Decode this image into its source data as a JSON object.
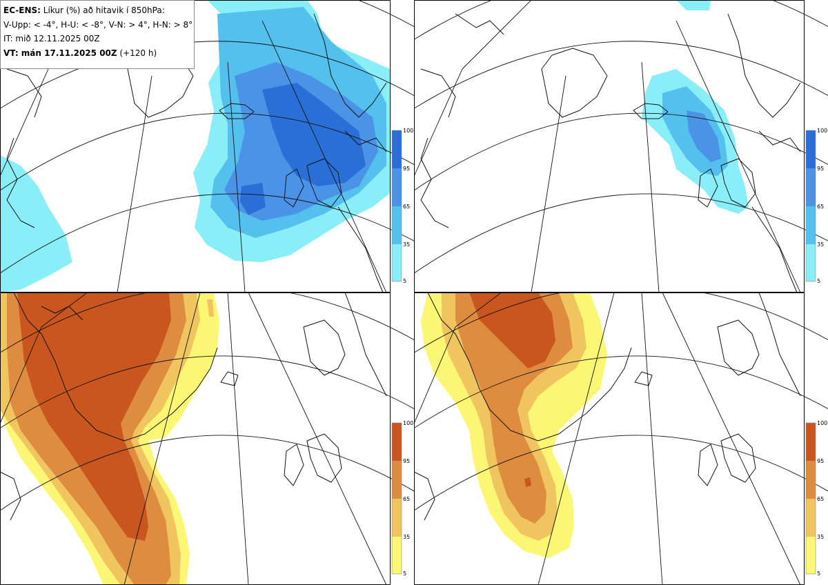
{
  "info": {
    "title_bold": "EC-ENS:",
    "title_rest": " Líkur (%) að hitavik í 850hPa:",
    "legend_line": "V-Upp: < -4°, H-U: < -8°, V-N: > 4°, H-N: > 8°",
    "init_time": "IT: mið 12.11.2025 00Z",
    "valid_bold": "VT: mán 17.11.2025 00Z",
    "valid_rest": " (+120 h)"
  },
  "panels": [
    {
      "id": "V-Upp",
      "description_code": "cold-anomaly-below-minus-4",
      "palette": "blue"
    },
    {
      "id": "H-U",
      "description_code": "cold-anomaly-below-minus-8",
      "palette": "blue"
    },
    {
      "id": "V-N",
      "description_code": "warm-anomaly-above-4",
      "palette": "orange"
    },
    {
      "id": "H-N",
      "description_code": "warm-anomaly-above-8",
      "palette": "orange"
    }
  ],
  "colorbar": {
    "ticks": [
      "100",
      "95",
      "65",
      "35",
      "5"
    ],
    "blue_colors": [
      "#2a6fd6",
      "#4a93e6",
      "#54c0ee",
      "#8aeef8"
    ],
    "orange_colors": [
      "#c8561e",
      "#dd8c40",
      "#f0c560",
      "#fbf775"
    ]
  }
}
